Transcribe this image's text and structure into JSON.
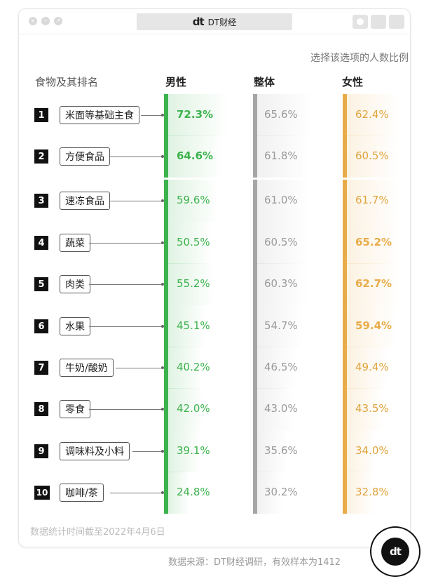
{
  "window": {
    "tab_title": "DT财经",
    "logo_text": "dt"
  },
  "chart_data": {
    "type": "bar",
    "subtitle": "选择该选项的人数比例",
    "column_headers": {
      "food": "食物及其排名",
      "male": "男性",
      "all": "整体",
      "female": "女性"
    },
    "categories": [
      "米面等基础主食",
      "方便食品",
      "速冻食品",
      "蔬菜",
      "肉类",
      "水果",
      "牛奶/酸奶",
      "零食",
      "调味料及小料",
      "咖啡/茶"
    ],
    "ranks": [
      "1",
      "2",
      "3",
      "4",
      "5",
      "6",
      "7",
      "8",
      "9",
      "10"
    ],
    "series": [
      {
        "name": "男性",
        "color": "#3cb34d",
        "values": [
          72.3,
          64.6,
          59.6,
          50.5,
          55.2,
          45.1,
          40.2,
          42.0,
          39.1,
          24.8
        ],
        "labels": [
          "72.3%",
          "64.6%",
          "59.6%",
          "50.5%",
          "55.2%",
          "45.1%",
          "40.2%",
          "42.0%",
          "39.1%",
          "24.8%"
        ],
        "bold": [
          true,
          true,
          false,
          false,
          false,
          false,
          false,
          false,
          false,
          false
        ]
      },
      {
        "name": "整体",
        "color": "#a6a6a6",
        "values": [
          65.6,
          61.8,
          61.0,
          60.5,
          60.3,
          54.7,
          46.5,
          43.0,
          35.6,
          30.2
        ],
        "labels": [
          "65.6%",
          "61.8%",
          "61.0%",
          "60.5%",
          "60.3%",
          "54.7%",
          "46.5%",
          "43.0%",
          "35.6%",
          "30.2%"
        ],
        "bold": [
          false,
          false,
          false,
          false,
          false,
          false,
          false,
          false,
          false,
          false
        ]
      },
      {
        "name": "女性",
        "color": "#e8ac48",
        "values": [
          62.4,
          60.5,
          61.7,
          65.2,
          62.7,
          59.4,
          49.4,
          43.5,
          34.0,
          32.8
        ],
        "labels": [
          "62.4%",
          "60.5%",
          "61.7%",
          "65.2%",
          "62.7%",
          "59.4%",
          "49.4%",
          "43.5%",
          "34.0%",
          "32.8%"
        ],
        "bold": [
          false,
          false,
          false,
          true,
          true,
          true,
          false,
          false,
          false,
          false
        ]
      }
    ]
  },
  "footnote": "数据统计时间截至2022年4月6日",
  "source": "数据来源：DT财经调研，有效样本为1412",
  "badge_text": "dt"
}
